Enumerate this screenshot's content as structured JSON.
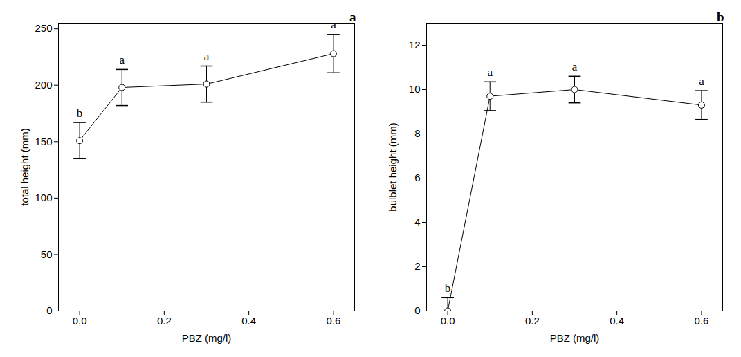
{
  "chart_data": [
    {
      "type": "line",
      "title": "a",
      "x": [
        0,
        0.1,
        0.3,
        0.6
      ],
      "values": [
        151,
        198,
        201,
        228
      ],
      "errors": [
        16,
        16,
        16,
        17
      ],
      "letters": [
        "b",
        "a",
        "a",
        "a"
      ],
      "x_label": "PBZ (mg/l)",
      "y_label": "total height (mm)",
      "xlim": [
        -0.05,
        0.65
      ],
      "xticks": [
        {
          "value": 0,
          "label": "0.0"
        },
        0.2,
        0.4,
        0.6
      ],
      "ylim": [
        0,
        255
      ],
      "yticks": [
        0,
        50,
        100,
        150,
        200,
        250
      ],
      "color": "#000000",
      "marker": "circle",
      "grid": false
    },
    {
      "type": "line",
      "title": "b",
      "x": [
        0,
        0.1,
        0.3,
        0.6
      ],
      "values": [
        0,
        9.7,
        10.0,
        9.3
      ],
      "errors": [
        0.6,
        0.65,
        0.6,
        0.65
      ],
      "letters": [
        "b",
        "a",
        "a",
        "a"
      ],
      "x_label": "PBZ (mg/l)",
      "y_label": "bulblet height (mm)",
      "xlim": [
        -0.05,
        0.65
      ],
      "xticks": [
        {
          "value": 0,
          "label": "0.0"
        },
        0.2,
        0.4,
        0.6
      ],
      "ylim": [
        0,
        13
      ],
      "yticks": [
        0,
        2,
        4,
        6,
        8,
        10,
        12
      ],
      "color": "#000000",
      "marker": "circle",
      "grid": false
    }
  ]
}
